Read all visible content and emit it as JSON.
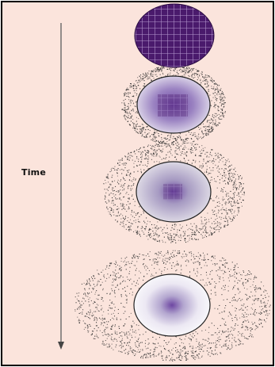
{
  "time_axis": {
    "label": "Time",
    "direction": "down"
  },
  "stages": [
    {
      "index": 1,
      "dots_outside": false
    },
    {
      "index": 2,
      "dots_outside": true
    },
    {
      "index": 3,
      "dots_outside": true
    },
    {
      "index": 4,
      "dots_outside": true
    }
  ],
  "colors": {
    "background": "#fbe4dc",
    "border": "#000000",
    "particle_purple": "#4a1a6c",
    "gradient_center": "#7a55a8",
    "gradient_edge": "#f2f0f6",
    "dots": "#2b2b2b"
  }
}
